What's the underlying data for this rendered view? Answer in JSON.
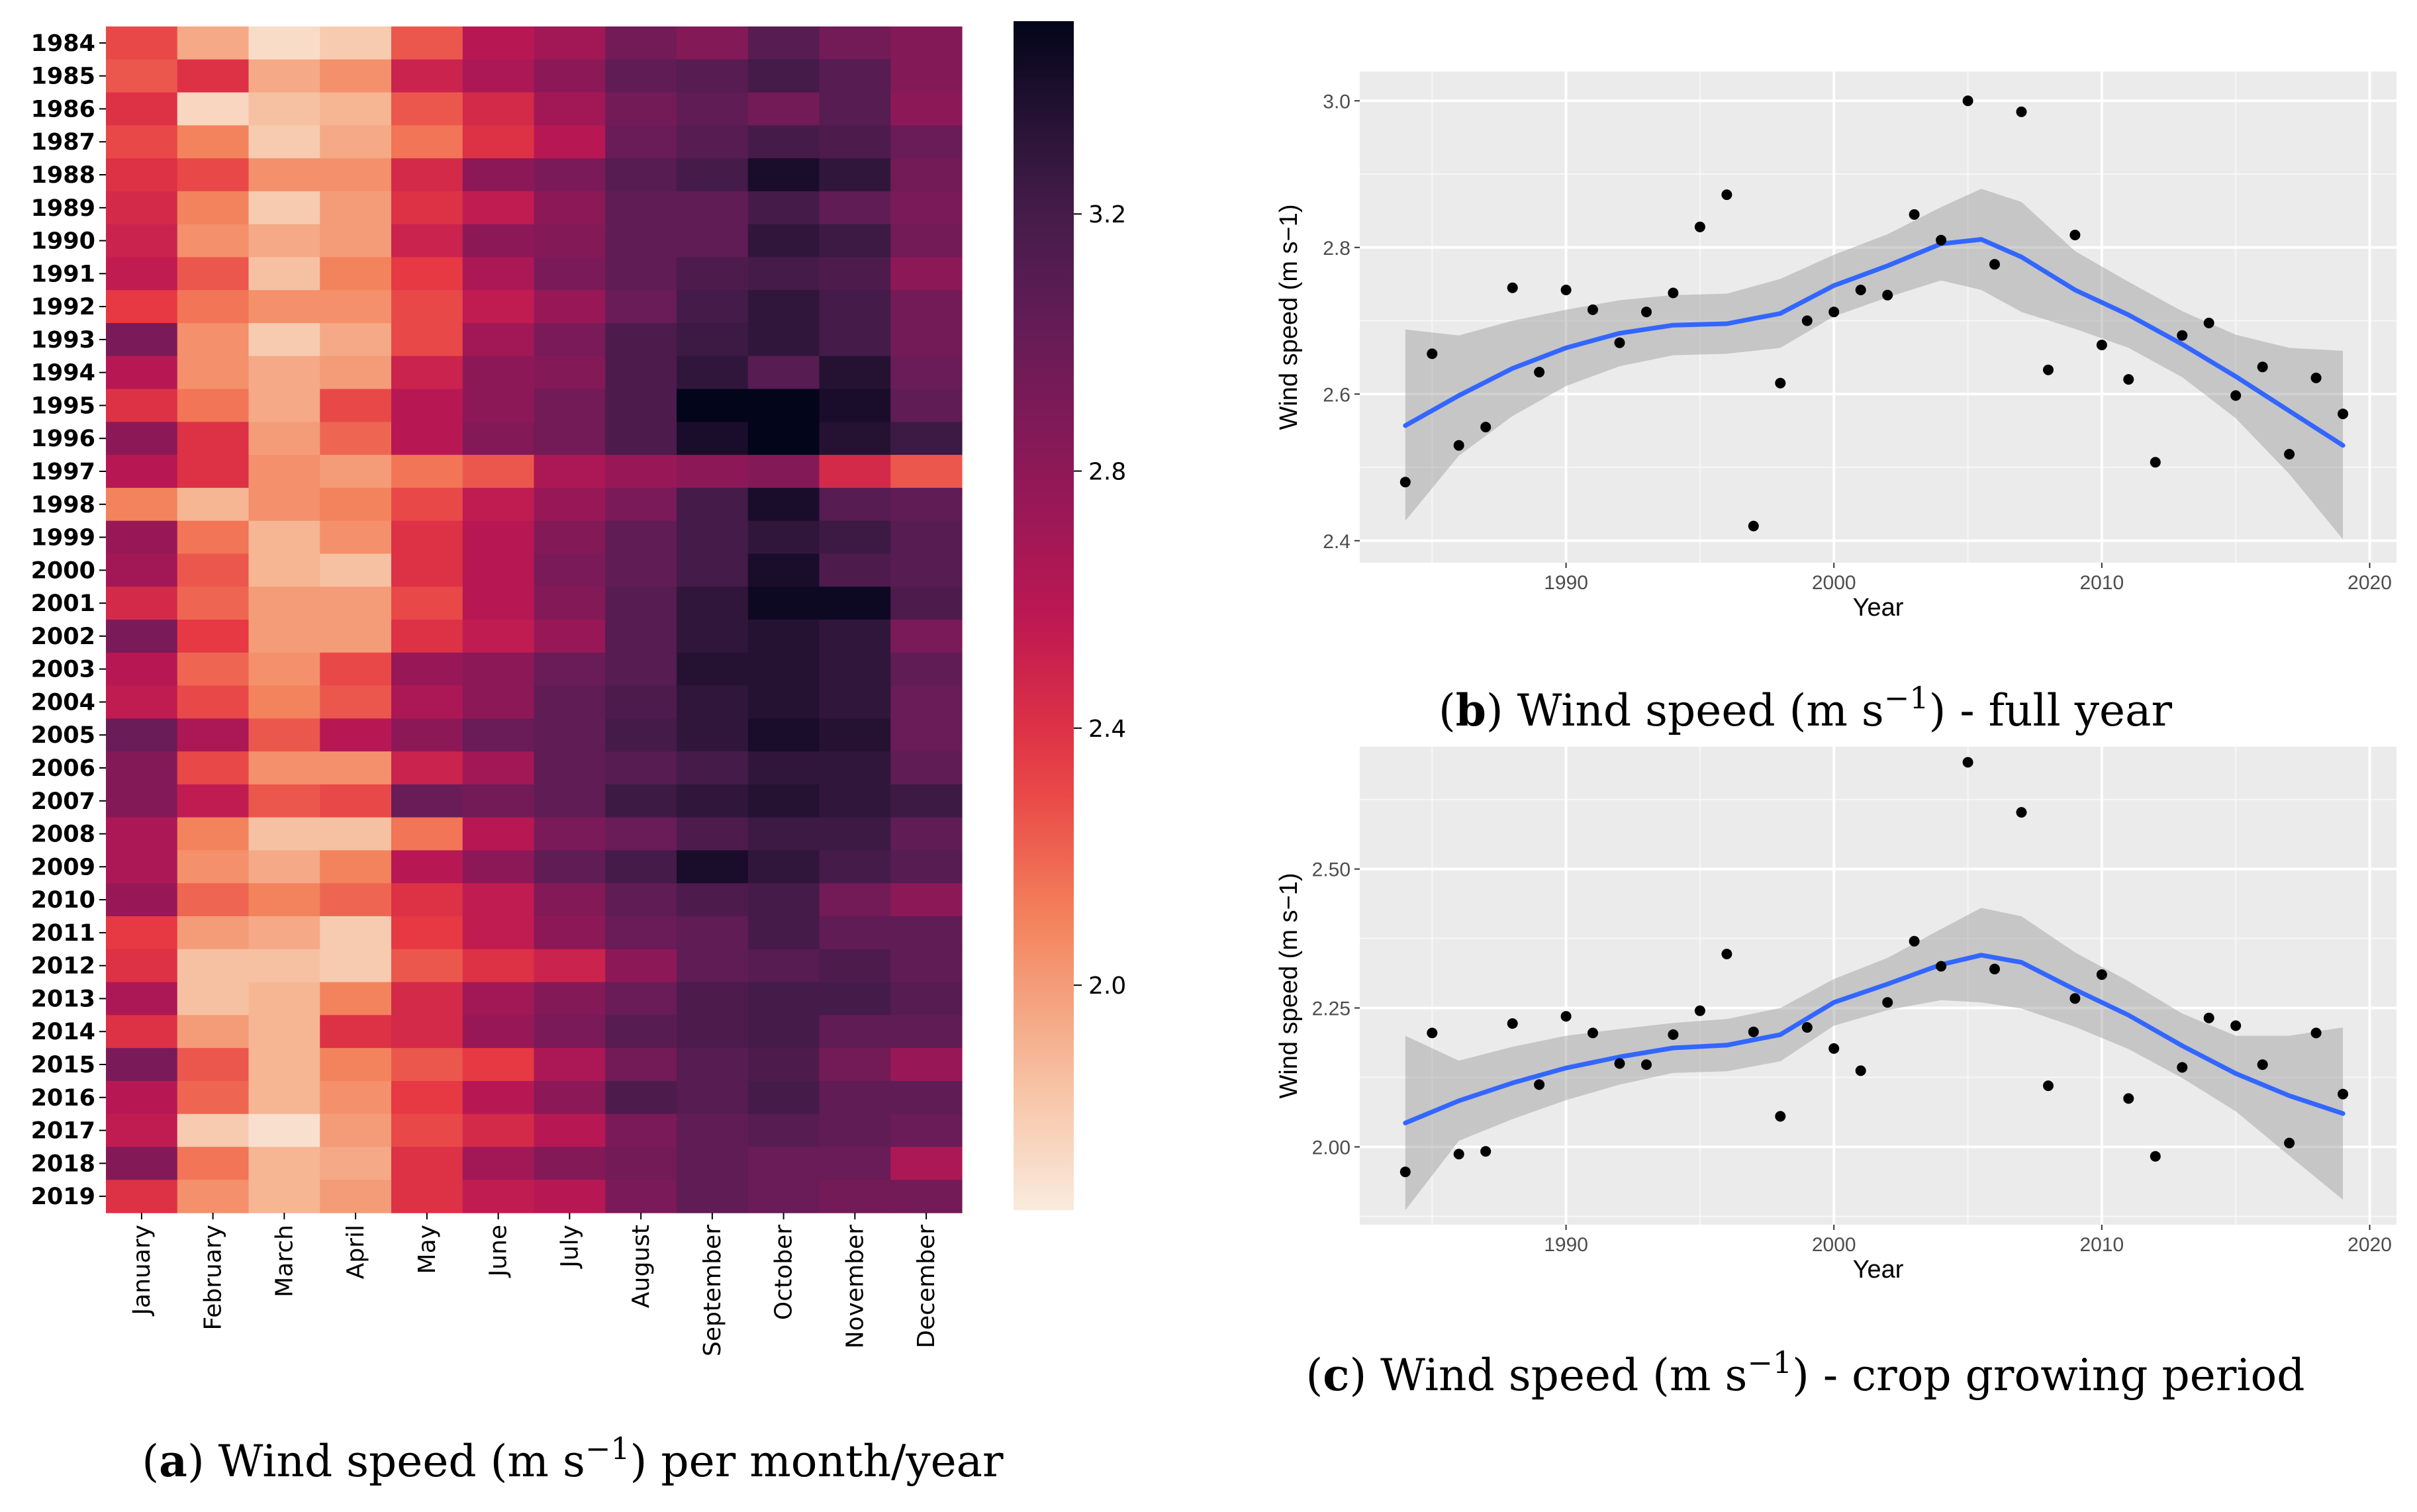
{
  "chart_data": [
    {
      "type": "heatmap",
      "caption_label": "a",
      "caption_text": "Wind speed (m s",
      "caption_sup": "−1",
      "caption_tail": ") per month/year",
      "rows": [
        "1984",
        "1985",
        "1986",
        "1987",
        "1988",
        "1989",
        "1990",
        "1991",
        "1992",
        "1993",
        "1994",
        "1995",
        "1996",
        "1997",
        "1998",
        "1999",
        "2000",
        "2001",
        "2002",
        "2003",
        "2004",
        "2005",
        "2006",
        "2007",
        "2008",
        "2009",
        "2010",
        "2011",
        "2012",
        "2013",
        "2014",
        "2015",
        "2016",
        "2017",
        "2018",
        "2019"
      ],
      "columns": [
        "January",
        "February",
        "March",
        "April",
        "May",
        "June",
        "July",
        "August",
        "September",
        "October",
        "November",
        "December"
      ],
      "colorbar": {
        "min": 1.65,
        "max": 3.5,
        "ticks": [
          "2.0",
          "2.4",
          "2.8",
          "3.2"
        ]
      },
      "values": [
        [
          2.3,
          1.95,
          1.72,
          1.8,
          2.25,
          2.6,
          2.7,
          2.95,
          2.85,
          3.1,
          2.95,
          2.85
        ],
        [
          2.25,
          2.4,
          1.95,
          2.05,
          2.5,
          2.65,
          2.8,
          3.05,
          3.1,
          3.2,
          3.1,
          2.85
        ],
        [
          2.4,
          1.75,
          1.85,
          1.9,
          2.25,
          2.45,
          2.7,
          2.95,
          3.05,
          2.95,
          3.1,
          2.8
        ],
        [
          2.3,
          2.1,
          1.8,
          1.95,
          2.15,
          2.4,
          2.6,
          3.0,
          3.1,
          3.2,
          3.15,
          3.0
        ],
        [
          2.4,
          2.3,
          2.05,
          2.05,
          2.45,
          2.8,
          2.9,
          3.1,
          3.2,
          3.4,
          3.3,
          2.95
        ],
        [
          2.45,
          2.1,
          1.8,
          2.0,
          2.4,
          2.55,
          2.8,
          3.05,
          3.05,
          3.2,
          3.05,
          2.9
        ],
        [
          2.5,
          2.05,
          1.95,
          2.0,
          2.5,
          2.8,
          2.85,
          3.05,
          3.05,
          3.3,
          3.25,
          2.95
        ],
        [
          2.55,
          2.25,
          1.85,
          2.1,
          2.35,
          2.65,
          2.9,
          3.05,
          3.15,
          3.2,
          3.15,
          2.8
        ],
        [
          2.35,
          2.15,
          2.05,
          2.05,
          2.3,
          2.55,
          2.75,
          3.0,
          3.2,
          3.3,
          3.2,
          2.95
        ],
        [
          2.9,
          2.05,
          1.8,
          1.95,
          2.3,
          2.7,
          2.9,
          3.15,
          3.25,
          3.3,
          3.2,
          2.95
        ],
        [
          2.6,
          2.05,
          1.95,
          2.0,
          2.5,
          2.8,
          2.85,
          3.15,
          3.3,
          3.1,
          3.35,
          3.0
        ],
        [
          2.4,
          2.15,
          1.95,
          2.3,
          2.6,
          2.8,
          2.95,
          3.15,
          3.5,
          3.55,
          3.4,
          3.05
        ],
        [
          2.8,
          2.4,
          2.0,
          2.2,
          2.6,
          2.85,
          2.95,
          3.15,
          3.4,
          3.5,
          3.35,
          3.25
        ],
        [
          2.6,
          2.4,
          2.05,
          2.0,
          2.15,
          2.25,
          2.65,
          2.75,
          2.8,
          2.85,
          2.45,
          2.25
        ],
        [
          2.1,
          1.9,
          2.05,
          2.1,
          2.3,
          2.55,
          2.75,
          2.9,
          3.2,
          3.4,
          3.1,
          3.05
        ],
        [
          2.75,
          2.15,
          1.9,
          2.05,
          2.4,
          2.6,
          2.85,
          3.05,
          3.2,
          3.3,
          3.25,
          3.1
        ],
        [
          2.7,
          2.25,
          1.9,
          1.85,
          2.4,
          2.6,
          2.9,
          3.05,
          3.2,
          3.4,
          3.15,
          3.1
        ],
        [
          2.45,
          2.2,
          2.0,
          2.0,
          2.3,
          2.6,
          2.85,
          3.1,
          3.3,
          3.45,
          3.45,
          3.15
        ],
        [
          2.9,
          2.35,
          2.0,
          2.0,
          2.4,
          2.55,
          2.75,
          3.1,
          3.3,
          3.35,
          3.3,
          2.9
        ],
        [
          2.6,
          2.2,
          2.05,
          2.3,
          2.75,
          2.8,
          3.0,
          3.1,
          3.35,
          3.35,
          3.3,
          3.05
        ],
        [
          2.55,
          2.3,
          2.1,
          2.25,
          2.65,
          2.8,
          3.05,
          3.15,
          3.3,
          3.35,
          3.3,
          3.0
        ],
        [
          3.0,
          2.65,
          2.25,
          2.6,
          2.8,
          3.0,
          3.05,
          3.2,
          3.3,
          3.4,
          3.35,
          3.0
        ],
        [
          2.85,
          2.3,
          2.05,
          2.05,
          2.5,
          2.7,
          3.05,
          3.1,
          3.2,
          3.3,
          3.3,
          3.05
        ],
        [
          2.85,
          2.55,
          2.25,
          2.3,
          3.0,
          2.95,
          3.05,
          3.25,
          3.3,
          3.35,
          3.3,
          3.25
        ],
        [
          2.65,
          2.1,
          1.85,
          1.85,
          2.15,
          2.6,
          2.9,
          3.0,
          3.15,
          3.25,
          3.25,
          3.05
        ],
        [
          2.65,
          2.05,
          1.95,
          2.1,
          2.6,
          2.8,
          3.05,
          3.2,
          3.4,
          3.3,
          3.2,
          3.1
        ],
        [
          2.75,
          2.2,
          2.1,
          2.2,
          2.4,
          2.55,
          2.85,
          3.05,
          3.15,
          3.2,
          2.95,
          2.8
        ],
        [
          2.35,
          2.0,
          1.95,
          1.8,
          2.35,
          2.55,
          2.8,
          3.0,
          3.05,
          3.2,
          3.05,
          3.05
        ],
        [
          2.4,
          1.85,
          1.85,
          1.8,
          2.25,
          2.4,
          2.5,
          2.8,
          3.05,
          3.1,
          3.15,
          3.05
        ],
        [
          2.65,
          1.85,
          1.9,
          2.1,
          2.45,
          2.7,
          2.85,
          3.0,
          3.15,
          3.2,
          3.2,
          3.1
        ],
        [
          2.4,
          2.0,
          1.9,
          2.4,
          2.45,
          2.75,
          2.9,
          3.1,
          3.15,
          3.2,
          3.05,
          3.05
        ],
        [
          2.9,
          2.25,
          1.9,
          2.1,
          2.25,
          2.35,
          2.65,
          2.95,
          3.1,
          3.15,
          2.95,
          2.75
        ],
        [
          2.6,
          2.2,
          1.9,
          2.05,
          2.35,
          2.6,
          2.8,
          3.15,
          3.1,
          3.2,
          3.05,
          3.05
        ],
        [
          2.55,
          1.8,
          1.7,
          2.0,
          2.3,
          2.45,
          2.6,
          2.9,
          3.05,
          3.1,
          3.05,
          3.0
        ],
        [
          2.85,
          2.15,
          1.9,
          1.95,
          2.4,
          2.7,
          2.85,
          2.95,
          3.05,
          3.0,
          3.0,
          2.65
        ],
        [
          2.4,
          2.05,
          1.9,
          2.0,
          2.4,
          2.55,
          2.6,
          2.9,
          3.05,
          3.0,
          2.95,
          2.95
        ]
      ]
    },
    {
      "type": "scatter",
      "caption_label": "b",
      "caption_text": "Wind speed (m s",
      "caption_sup": "−1",
      "caption_tail": ") - full year",
      "xlabel": "Year",
      "ylabel": "Wind speed (m s−1)",
      "xlim": [
        1982.3,
        2021
      ],
      "ylim": [
        2.37,
        3.04
      ],
      "xticks": [
        1990,
        2000,
        2010,
        2020
      ],
      "yticks": [
        "2.4",
        "2.6",
        "2.8",
        "3.0"
      ],
      "x": [
        1984,
        1985,
        1986,
        1987,
        1988,
        1989,
        1990,
        1991,
        1992,
        1993,
        1994,
        1995,
        1996,
        1997,
        1998,
        1999,
        2000,
        2001,
        2002,
        2003,
        2004,
        2005,
        2006,
        2007,
        2008,
        2009,
        2010,
        2011,
        2012,
        2013,
        2014,
        2015,
        2016,
        2017,
        2018,
        2019
      ],
      "y": [
        2.48,
        2.655,
        2.53,
        2.555,
        2.745,
        2.63,
        2.742,
        2.715,
        2.67,
        2.712,
        2.738,
        2.828,
        2.872,
        2.42,
        2.615,
        2.7,
        2.712,
        2.742,
        2.735,
        2.845,
        2.81,
        3.0,
        2.777,
        2.985,
        2.633,
        2.817,
        2.667,
        2.62,
        2.507,
        2.68,
        2.697,
        2.598,
        2.637,
        2.518,
        2.622,
        2.573
      ],
      "smooth": {
        "x": [
          1984,
          1986,
          1988,
          1990,
          1992,
          1994,
          1996,
          1998,
          2000,
          2002,
          2004,
          2005.5,
          2007,
          2009,
          2011,
          2013,
          2015,
          2017,
          2019
        ],
        "y": [
          2.557,
          2.598,
          2.635,
          2.663,
          2.683,
          2.694,
          2.696,
          2.71,
          2.748,
          2.775,
          2.805,
          2.811,
          2.787,
          2.742,
          2.708,
          2.668,
          2.624,
          2.577,
          2.53
        ],
        "upper": [
          2.688,
          2.68,
          2.7,
          2.715,
          2.728,
          2.735,
          2.737,
          2.757,
          2.79,
          2.818,
          2.855,
          2.88,
          2.862,
          2.795,
          2.753,
          2.713,
          2.681,
          2.663,
          2.659
        ],
        "lower": [
          2.427,
          2.516,
          2.57,
          2.611,
          2.638,
          2.653,
          2.655,
          2.663,
          2.706,
          2.732,
          2.755,
          2.742,
          2.712,
          2.689,
          2.663,
          2.623,
          2.567,
          2.491,
          2.402
        ]
      }
    },
    {
      "type": "scatter",
      "caption_label": "c",
      "caption_text": "Wind speed (m s",
      "caption_sup": "−1",
      "caption_tail": ") - crop growing period",
      "xlabel": "Year",
      "ylabel": "Wind speed (m s−1)",
      "xlim": [
        1982.3,
        2021
      ],
      "ylim": [
        1.86,
        2.72
      ],
      "xticks": [
        1990,
        2000,
        2010,
        2020
      ],
      "yticks": [
        "2.00",
        "2.25",
        "2.50"
      ],
      "x": [
        1984,
        1985,
        1986,
        1987,
        1988,
        1989,
        1990,
        1991,
        1992,
        1993,
        1994,
        1995,
        1996,
        1997,
        1998,
        1999,
        2000,
        2001,
        2002,
        2003,
        2004,
        2005,
        2006,
        2007,
        2008,
        2009,
        2010,
        2011,
        2012,
        2013,
        2014,
        2015,
        2016,
        2017,
        2018,
        2019
      ],
      "y": [
        1.955,
        2.205,
        1.987,
        1.992,
        2.222,
        2.112,
        2.235,
        2.205,
        2.15,
        2.148,
        2.202,
        2.245,
        2.347,
        2.207,
        2.055,
        2.215,
        2.177,
        2.137,
        2.26,
        2.37,
        2.325,
        2.692,
        2.32,
        2.602,
        2.11,
        2.267,
        2.31,
        2.087,
        1.983,
        2.143,
        2.232,
        2.218,
        2.148,
        2.007,
        2.205,
        2.095
      ],
      "smooth": {
        "x": [
          1984,
          1986,
          1988,
          1990,
          1992,
          1994,
          1996,
          1998,
          2000,
          2002,
          2004,
          2005.5,
          2007,
          2009,
          2011,
          2013,
          2015,
          2017,
          2019
        ],
        "y": [
          2.043,
          2.083,
          2.115,
          2.142,
          2.162,
          2.178,
          2.183,
          2.202,
          2.26,
          2.293,
          2.328,
          2.345,
          2.332,
          2.283,
          2.237,
          2.182,
          2.132,
          2.092,
          2.06
        ],
        "upper": [
          2.2,
          2.155,
          2.18,
          2.2,
          2.212,
          2.223,
          2.23,
          2.25,
          2.302,
          2.34,
          2.392,
          2.43,
          2.415,
          2.35,
          2.298,
          2.24,
          2.2,
          2.2,
          2.215
        ],
        "lower": [
          1.886,
          2.011,
          2.05,
          2.084,
          2.112,
          2.133,
          2.136,
          2.154,
          2.218,
          2.246,
          2.264,
          2.26,
          2.249,
          2.216,
          2.176,
          2.124,
          2.064,
          1.984,
          1.905
        ]
      }
    }
  ]
}
